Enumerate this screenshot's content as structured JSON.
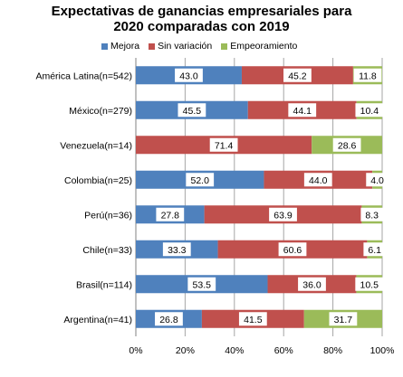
{
  "chart_data": {
    "type": "bar",
    "orientation": "horizontal-stacked-100",
    "title_line1": "Expectativas de ganancias empresariales para",
    "title_line2": "2020 comparadas con 2019",
    "categories": [
      "América Latina(n=542)",
      "México(n=279)",
      "Venezuela(n=14)",
      "Colombia(n=25)",
      "Perú(n=36)",
      "Chile(n=33)",
      "Brasil(n=114)",
      "Argentina(n=41)"
    ],
    "series": [
      {
        "name": "Mejora",
        "color": "#4f81bd",
        "values": [
          43.0,
          45.5,
          0,
          52.0,
          27.8,
          33.3,
          53.5,
          26.8
        ],
        "labels": [
          "43.0",
          "45.5",
          "",
          "52.0",
          "27.8",
          "33.3",
          "53.5",
          "26.8"
        ]
      },
      {
        "name": "Sin variación",
        "color": "#c0504d",
        "values": [
          45.2,
          44.1,
          71.4,
          44.0,
          63.9,
          60.6,
          36.0,
          41.5
        ],
        "labels": [
          "45.2",
          "44.1",
          "71.4",
          "44.0",
          "63.9",
          "60.6",
          "36.0",
          "41.5"
        ]
      },
      {
        "name": "Empeoramiento",
        "color": "#9bbb59",
        "values": [
          11.8,
          10.4,
          28.6,
          4.0,
          8.3,
          6.1,
          10.5,
          31.7
        ],
        "labels": [
          "11.8",
          "10.4",
          "28.6",
          "4.0",
          "8.3",
          "6.1",
          "10.5",
          "31.7"
        ]
      }
    ],
    "xlim": [
      0,
      100
    ],
    "x_ticks": [
      "0%",
      "20%",
      "40%",
      "60%",
      "80%",
      "100%"
    ],
    "grid": true,
    "legend_position": "top"
  }
}
